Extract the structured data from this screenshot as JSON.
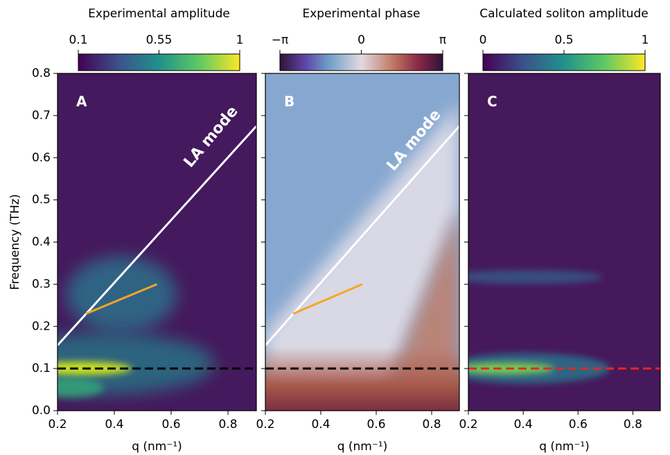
{
  "chart_data": [
    {
      "type": "heatmap",
      "panel_label": "A",
      "colorbar_title": "Experimental amplitude",
      "clim": [
        0.1,
        1
      ],
      "cticks": [
        0.1,
        0.55,
        1
      ],
      "xlabel": "q (nm⁻¹)",
      "xlim": [
        0.2,
        0.9
      ],
      "xticks": [
        0.2,
        0.4,
        0.6,
        0.8
      ],
      "ylabel": "Frequency (THz)",
      "ylim": [
        0,
        0.8
      ],
      "yticks": [
        {
          "value": 0,
          "label": "0.0"
        },
        0.1,
        0.2,
        0.3,
        0.4,
        0.5,
        0.6,
        0.7,
        0.8
      ],
      "annotation": "LA mode",
      "series": [
        {
          "color": "#ffffff",
          "style": "solid",
          "x": [
            0.2,
            0.9
          ],
          "values": [
            0.155,
            0.675
          ]
        },
        {
          "color": "#f5a623",
          "style": "solid",
          "x": [
            0.3,
            0.55
          ],
          "values": [
            0.23,
            0.3
          ]
        },
        {
          "color": "#000000",
          "style": "dashed",
          "x": [
            0.2,
            0.9
          ],
          "values": [
            0.1,
            0.1
          ]
        }
      ]
    },
    {
      "type": "heatmap",
      "panel_label": "B",
      "colorbar_title": "Experimental phase",
      "clim": [
        -3.14159,
        3.14159
      ],
      "cticks": [
        {
          "value": -3.14159,
          "label": "−π"
        },
        0,
        {
          "value": 3.14159,
          "label": "π"
        }
      ],
      "xlabel": "q (nm⁻¹)",
      "xlim": [
        0.2,
        0.9
      ],
      "xticks": [
        0.2,
        0.4,
        0.6,
        0.8
      ],
      "annotation": "LA mode",
      "series": [
        {
          "color": "#ffffff",
          "style": "solid",
          "x": [
            0.2,
            0.9
          ],
          "values": [
            0.155,
            0.675
          ]
        },
        {
          "color": "#f5a623",
          "style": "solid",
          "x": [
            0.3,
            0.55
          ],
          "values": [
            0.23,
            0.3
          ]
        },
        {
          "color": "#000000",
          "style": "dashed",
          "x": [
            0.2,
            0.9
          ],
          "values": [
            0.1,
            0.1
          ]
        }
      ]
    },
    {
      "type": "heatmap",
      "panel_label": "C",
      "colorbar_title": "Calculated soliton amplitude",
      "clim": [
        0,
        1
      ],
      "cticks": [
        0,
        0.5,
        1
      ],
      "xlabel": "q (nm⁻¹)",
      "xlim": [
        0.2,
        0.9
      ],
      "xticks": [
        0.2,
        0.4,
        0.6,
        0.8
      ],
      "series": [
        {
          "color": "#e8271e",
          "style": "dashed",
          "x": [
            0.2,
            0.9
          ],
          "values": [
            0.1,
            0.1
          ]
        }
      ]
    }
  ]
}
